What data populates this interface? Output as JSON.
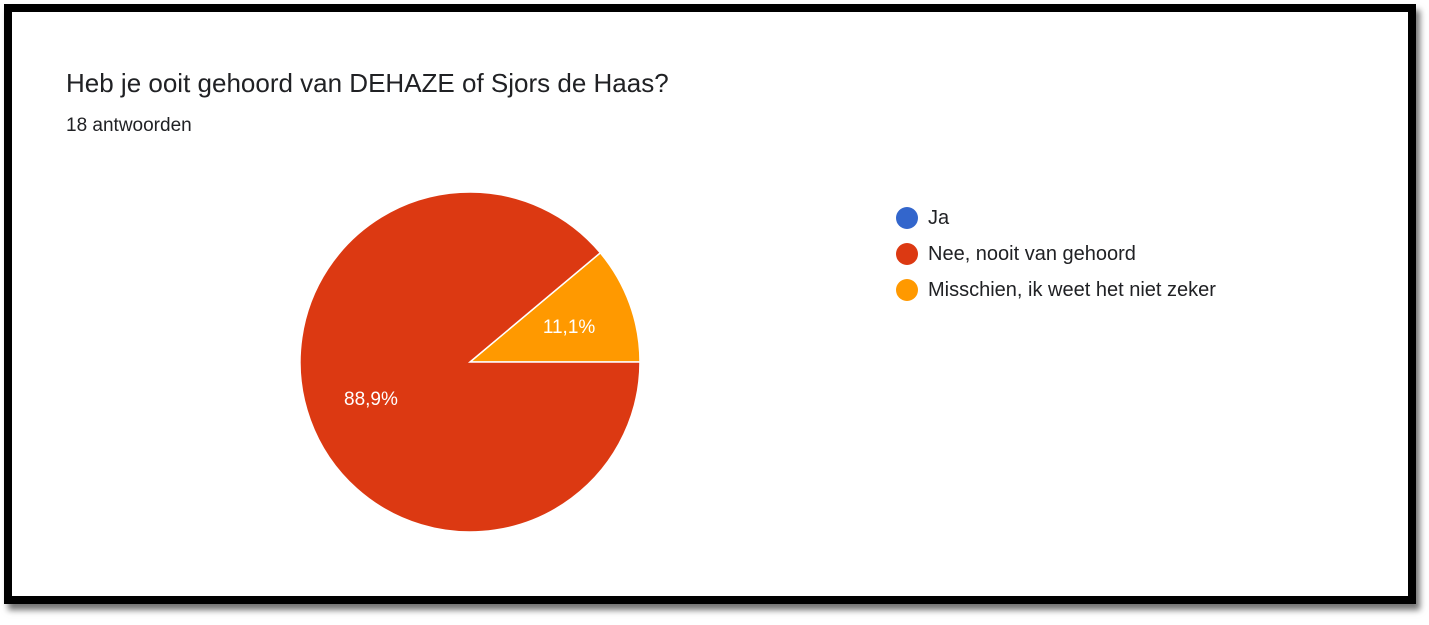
{
  "title": "Heb je ooit gehoord van DEHAZE of Sjors de Haas?",
  "subtitle": "18 antwoorden",
  "chart_data": {
    "type": "pie",
    "title": "Heb je ooit gehoord van DEHAZE of Sjors de Haas?",
    "subtitle": "18 antwoorden",
    "categories": [
      "Ja",
      "Nee, nooit van gehoord",
      "Misschien, ik weet het niet zeker"
    ],
    "values": [
      0,
      88.9,
      11.1
    ],
    "value_labels": [
      "",
      "88,9%",
      "11,1%"
    ],
    "colors": [
      "#3366cc",
      "#dc3912",
      "#ff9900"
    ],
    "legend_position": "right"
  }
}
